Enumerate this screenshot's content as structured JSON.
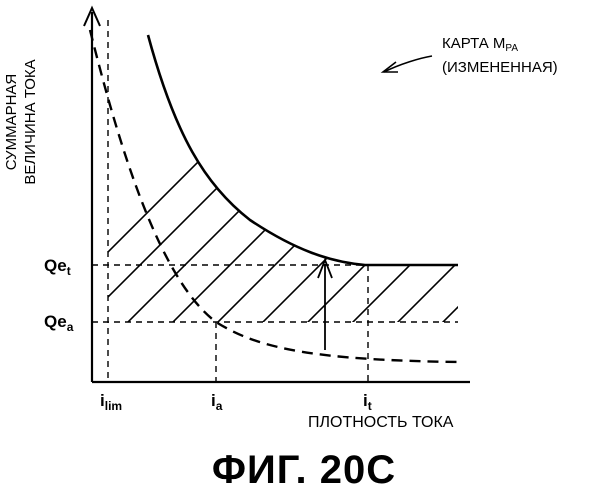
{
  "figure": {
    "title": "ФИГ. 20С",
    "y_axis_label": [
      "СУММАРНАЯ",
      "ВЕЛИЧИНА ТОКА"
    ],
    "x_axis_label": "ПЛОТНОСТЬ ТОКА",
    "legend": {
      "line1_prefix": "КАРТА М",
      "line1_sub": "PA",
      "line2": "(ИЗМЕНЕННАЯ)"
    },
    "y_ticks": {
      "qe_t": {
        "base": "Qe",
        "sub": "t"
      },
      "qe_a": {
        "base": "Qe",
        "sub": "a"
      }
    },
    "x_ticks": {
      "i_lim": {
        "base": "i",
        "sub": "lim"
      },
      "i_a": {
        "base": "i",
        "sub": "a"
      },
      "i_t": {
        "base": "i",
        "sub": "t"
      }
    }
  },
  "colors": {
    "ink": "#000000",
    "background": "#ffffff"
  }
}
